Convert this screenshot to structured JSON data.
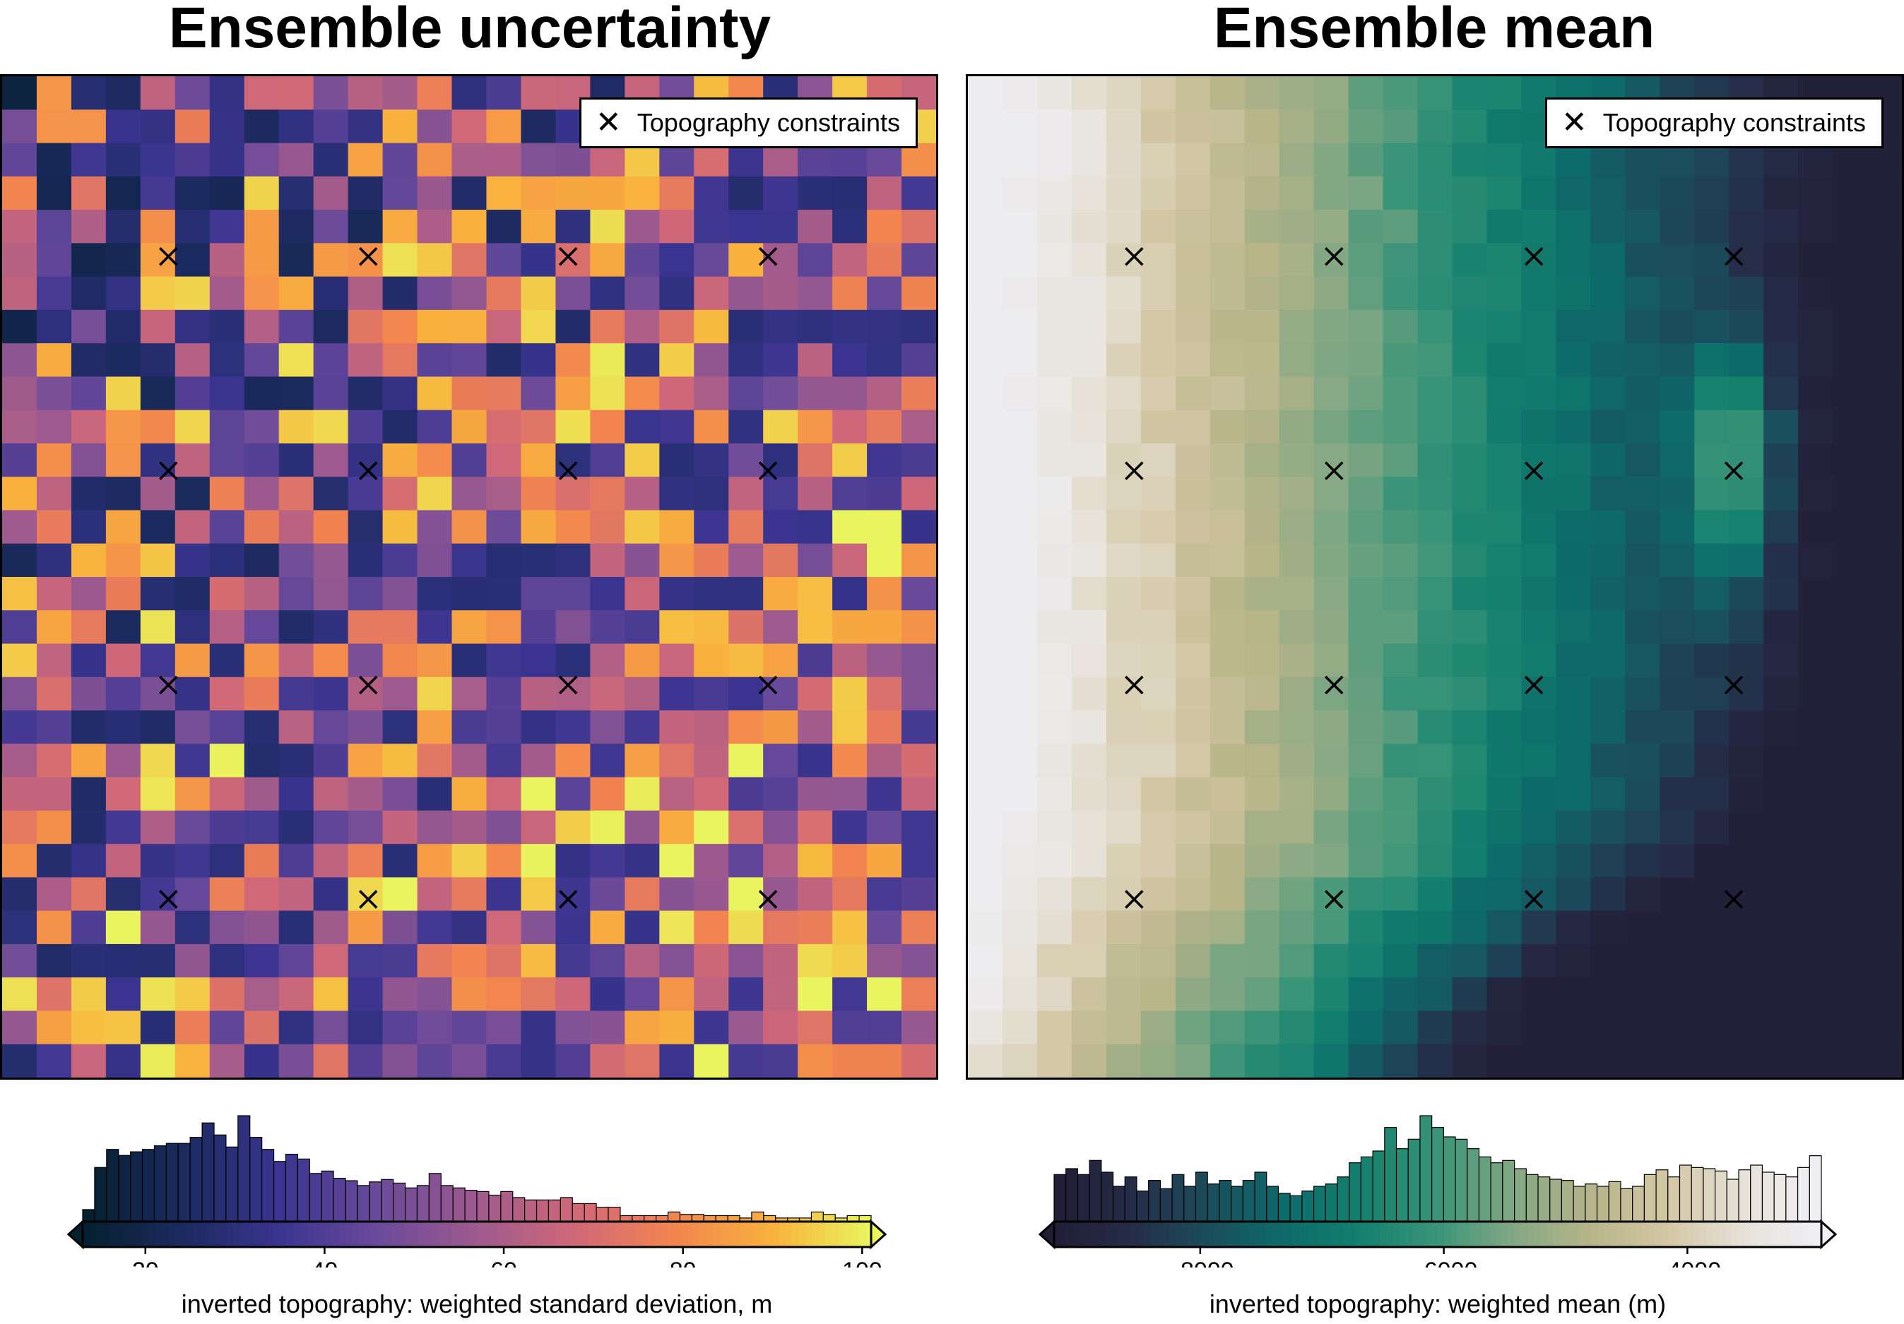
{
  "chart_data": [
    {
      "type": "heatmap",
      "title": "Ensemble uncertainty",
      "legend": "Topography constraints",
      "legend_position": "top-right",
      "colormap": "thermal (dark navy -> purple -> pink -> orange -> yellow)",
      "colorbar": {
        "label": "inverted topography: weighted standard deviation, m",
        "range": [
          13,
          101
        ],
        "ticks": [
          20,
          40,
          60,
          80,
          100
        ],
        "extend": "both",
        "histogram_counts": [
          10,
          45,
          60,
          55,
          58,
          60,
          63,
          65,
          65,
          70,
          82,
          72,
          62,
          88,
          70,
          60,
          50,
          56,
          52,
          40,
          42,
          36,
          34,
          30,
          33,
          35,
          32,
          28,
          30,
          40,
          30,
          28,
          26,
          25,
          22,
          25,
          20,
          18,
          18,
          18,
          20,
          15,
          15,
          12,
          12,
          5,
          5,
          5,
          5,
          8,
          6,
          6,
          5,
          5,
          5,
          3,
          8,
          5,
          3,
          3,
          3,
          8,
          6,
          3,
          5,
          5
        ]
      },
      "grid_size": [
        27,
        30
      ],
      "constraint_markers": "4 x 4 grid of x markers"
    },
    {
      "type": "heatmap",
      "title": "Ensemble mean",
      "legend": "Topography constraints",
      "legend_position": "top-right",
      "colormap": "rain-style (dark navy -> teal -> green -> tan -> white)",
      "colorbar": {
        "label": "inverted topography: weighted mean (m)",
        "range": [
          -9200,
          -2900
        ],
        "ticks": [
          -8000,
          -6000,
          -4000
        ],
        "extend": "both",
        "histogram_counts": [
          40,
          45,
          40,
          52,
          42,
          30,
          38,
          26,
          35,
          28,
          40,
          30,
          42,
          32,
          35,
          30,
          35,
          42,
          30,
          24,
          22,
          26,
          30,
          32,
          38,
          50,
          55,
          60,
          80,
          62,
          70,
          90,
          80,
          72,
          70,
          62,
          55,
          50,
          52,
          45,
          40,
          38,
          36,
          35,
          30,
          32,
          30,
          34,
          28,
          30,
          40,
          44,
          38,
          48,
          46,
          45,
          43,
          36,
          44,
          48,
          42,
          40,
          38,
          46,
          56
        ]
      },
      "grid_size": [
        27,
        30
      ],
      "constraint_markers": "4 x 4 grid of x markers"
    }
  ],
  "colors": {
    "unc_stops": [
      "#04202e",
      "#1b2a5e",
      "#3a3490",
      "#6a4a9a",
      "#9e5a8e",
      "#d06878",
      "#f2854f",
      "#f9b13d",
      "#e9f45e"
    ],
    "mean_stops": [
      "#221d36",
      "#252c47",
      "#1b4d5c",
      "#0d6b6a",
      "#13806e",
      "#3a9478",
      "#83a884",
      "#b7b489",
      "#d3c7a4",
      "#e7e2d9",
      "#efeff5"
    ]
  }
}
